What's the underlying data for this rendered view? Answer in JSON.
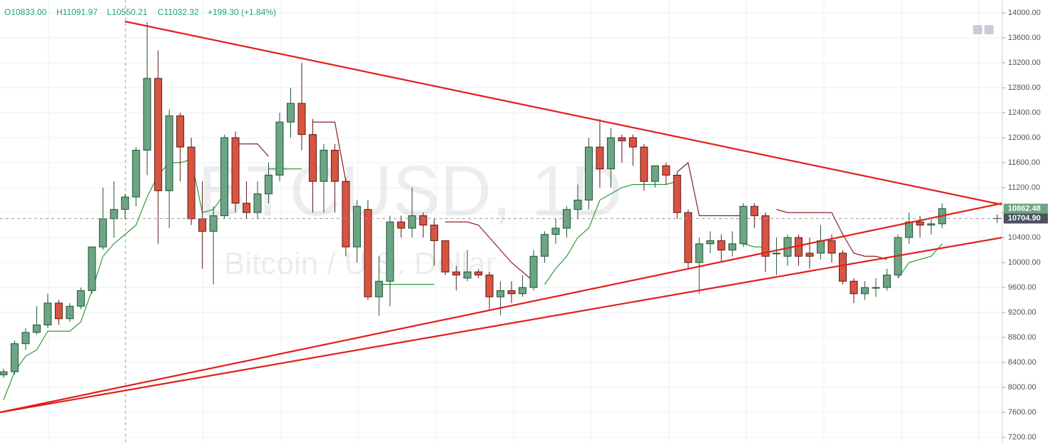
{
  "chart_data": {
    "type": "candlestick",
    "header": [
      "O10833.00",
      "H11091.97",
      "L10550.21",
      "C11032.32",
      "+199.30 (+1.84%)"
    ],
    "watermark": [
      "BTCUSD, 1D",
      "Bitcoin / U.S. Dollar"
    ],
    "ylim": [
      7108.6,
      14205.7
    ],
    "yticks": [
      {
        "value": 7200,
        "label": "7200.00"
      },
      {
        "value": 7600,
        "label": "7600.00"
      },
      {
        "value": 8000,
        "label": "8000.00"
      },
      {
        "value": 8400,
        "label": "8400.00"
      },
      {
        "value": 8800,
        "label": "8800.00"
      },
      {
        "value": 9200,
        "label": "9200.00"
      },
      {
        "value": 9600,
        "label": "9600.00"
      },
      {
        "value": 10000,
        "label": "10000.00"
      },
      {
        "value": 10400,
        "label": "10400.00"
      },
      {
        "value": 10800,
        "label": "10800.00"
      },
      {
        "value": 11200,
        "label": "11200.00"
      },
      {
        "value": 11600,
        "label": "11600.00"
      },
      {
        "value": 12000,
        "label": "12000.00"
      },
      {
        "value": 12400,
        "label": "12400.00"
      },
      {
        "value": 12800,
        "label": "12800.00"
      },
      {
        "value": 13200,
        "label": "13200.00"
      },
      {
        "value": 13600,
        "label": "13600.00"
      },
      {
        "value": 14000,
        "label": "14000.00"
      }
    ],
    "grid": true,
    "up_color": "#6ba583",
    "up_border": "#225437",
    "down_color": "#d75442",
    "down_border": "#5b1a13",
    "candles": [
      [
        8200,
        8300,
        8150,
        8250
      ],
      [
        8250,
        8750,
        8200,
        8700
      ],
      [
        8700,
        8950,
        8600,
        8880
      ],
      [
        8880,
        9300,
        8850,
        9000
      ],
      [
        9000,
        9500,
        8950,
        9350
      ],
      [
        9350,
        9400,
        9000,
        9100
      ],
      [
        9100,
        9350,
        9050,
        9300
      ],
      [
        9300,
        9600,
        9250,
        9550
      ],
      [
        9550,
        10250,
        9500,
        10250
      ],
      [
        10250,
        11200,
        10200,
        10700
      ],
      [
        10700,
        11300,
        10400,
        10850
      ],
      [
        10850,
        11100,
        10700,
        11050
      ],
      [
        11050,
        11850,
        10900,
        11800
      ],
      [
        11800,
        13850,
        11400,
        12950
      ],
      [
        12950,
        13400,
        10300,
        11150
      ],
      [
        11150,
        12450,
        10550,
        12350
      ],
      [
        12350,
        12400,
        11300,
        11850
      ],
      [
        11850,
        12000,
        10600,
        10700
      ],
      [
        10700,
        11300,
        9900,
        10500
      ],
      [
        10500,
        10900,
        9650,
        10750
      ],
      [
        10750,
        12050,
        10700,
        12000
      ],
      [
        12000,
        12100,
        10800,
        10950
      ],
      [
        10950,
        11300,
        10700,
        10800
      ],
      [
        10800,
        11300,
        10700,
        11100
      ],
      [
        11100,
        11600,
        10950,
        11400
      ],
      [
        11400,
        12400,
        11300,
        12250
      ],
      [
        12250,
        12800,
        12000,
        12550
      ],
      [
        12550,
        13200,
        11800,
        12050
      ],
      [
        12050,
        12300,
        10800,
        11300
      ],
      [
        11300,
        11900,
        10800,
        11800
      ],
      [
        11800,
        11900,
        10800,
        11300
      ],
      [
        11300,
        11350,
        10100,
        10250
      ],
      [
        10250,
        11000,
        10000,
        10900
      ],
      [
        10850,
        11000,
        9400,
        9450
      ],
      [
        9450,
        10100,
        9150,
        9700
      ],
      [
        9700,
        10750,
        9300,
        10650
      ],
      [
        10650,
        10750,
        10400,
        10550
      ],
      [
        10550,
        11200,
        10400,
        10750
      ],
      [
        10750,
        10800,
        10400,
        10600
      ],
      [
        10600,
        10700,
        9950,
        10350
      ],
      [
        10350,
        10350,
        9800,
        9850
      ],
      [
        9850,
        9950,
        9550,
        9800
      ],
      [
        9750,
        10200,
        9700,
        9850
      ],
      [
        9850,
        9900,
        9750,
        9800
      ],
      [
        9800,
        9850,
        9250,
        9450
      ],
      [
        9450,
        9700,
        9150,
        9550
      ],
      [
        9550,
        9700,
        9350,
        9500
      ],
      [
        9500,
        9800,
        9450,
        9600
      ],
      [
        9600,
        10200,
        9550,
        10100
      ],
      [
        10100,
        10500,
        10000,
        10450
      ],
      [
        10450,
        10700,
        10300,
        10550
      ],
      [
        10550,
        10900,
        10400,
        10850
      ],
      [
        10850,
        11250,
        10700,
        11000
      ],
      [
        11000,
        12000,
        10850,
        11850
      ],
      [
        11850,
        12300,
        11200,
        11500
      ],
      [
        11500,
        12150,
        11200,
        12000
      ],
      [
        12000,
        12050,
        11600,
        11950
      ],
      [
        12000,
        12050,
        11550,
        11850
      ],
      [
        11850,
        11900,
        11150,
        11300
      ],
      [
        11300,
        11550,
        11200,
        11550
      ],
      [
        11550,
        11600,
        11250,
        11400
      ],
      [
        11400,
        11450,
        10700,
        10800
      ],
      [
        10800,
        10850,
        9900,
        10000
      ],
      [
        10000,
        10400,
        9500,
        10300
      ],
      [
        10300,
        10500,
        10150,
        10350
      ],
      [
        10350,
        10450,
        10000,
        10200
      ],
      [
        10200,
        10500,
        10100,
        10300
      ],
      [
        10300,
        10950,
        10250,
        10900
      ],
      [
        10900,
        10950,
        10550,
        10750
      ],
      [
        10750,
        10800,
        9850,
        10100
      ],
      [
        10150,
        10400,
        9800,
        10150
      ],
      [
        10100,
        10450,
        9950,
        10400
      ],
      [
        10400,
        10450,
        9950,
        10100
      ],
      [
        10150,
        10400,
        9900,
        10100
      ],
      [
        10150,
        10600,
        10050,
        10350
      ],
      [
        10350,
        10450,
        10000,
        10150
      ],
      [
        10150,
        10200,
        9650,
        9700
      ],
      [
        9700,
        9750,
        9350,
        9500
      ],
      [
        9500,
        9700,
        9400,
        9600
      ],
      [
        9600,
        9750,
        9450,
        9600
      ],
      [
        9600,
        9900,
        9550,
        9800
      ],
      [
        9800,
        10450,
        9750,
        10400
      ],
      [
        10400,
        10800,
        10300,
        10650
      ],
      [
        10650,
        10750,
        10400,
        10600
      ],
      [
        10600,
        10700,
        10450,
        10620
      ],
      [
        10620,
        10950,
        10550,
        10862.48
      ]
    ],
    "series": [
      {
        "color": "#2a9d3a",
        "values": [
          7800,
          8250,
          8500,
          8600,
          8900,
          8900,
          8900,
          9050,
          9550,
          10100,
          10300,
          10450,
          10600,
          11050,
          11400,
          11600,
          11600,
          11650,
          10800,
          10850,
          11100,
          null,
          null,
          null,
          11500,
          11500,
          11500,
          11500,
          null,
          null,
          null,
          null,
          null,
          null,
          9650,
          9650,
          9650,
          9650,
          9650,
          9650,
          null,
          null,
          null,
          null,
          null,
          null,
          null,
          null,
          null,
          9650,
          9900,
          10100,
          10400,
          10550,
          11000,
          11100,
          11200,
          11250,
          11250,
          11250,
          11250,
          11300,
          null,
          null,
          null,
          null,
          null,
          10300,
          10250,
          10250,
          null,
          null,
          null,
          null,
          null,
          null,
          null,
          null,
          null,
          null,
          null,
          9750,
          10000,
          10050,
          10100,
          10300
        ]
      },
      {
        "color": "#8b2020",
        "values": [
          null,
          null,
          null,
          null,
          null,
          null,
          null,
          null,
          null,
          null,
          null,
          null,
          null,
          null,
          null,
          null,
          null,
          null,
          null,
          null,
          null,
          11900,
          11900,
          11900,
          11700,
          null,
          null,
          null,
          12250,
          12250,
          12250,
          11300,
          null,
          null,
          null,
          null,
          null,
          null,
          null,
          null,
          10650,
          10650,
          10650,
          10600,
          10400,
          10200,
          10000,
          9850,
          9700,
          null,
          null,
          null,
          null,
          null,
          null,
          null,
          null,
          null,
          null,
          null,
          null,
          11450,
          11600,
          10750,
          10750,
          10750,
          10750,
          10750,
          null,
          null,
          10850,
          10800,
          10800,
          10800,
          10800,
          10800,
          10450,
          10150,
          10100,
          10100,
          10050,
          null,
          null,
          null,
          null,
          null
        ]
      }
    ],
    "trendlines": [
      {
        "color": "#e0201b",
        "from": [
          10.98,
          13863
        ],
        "to": [
          90.44,
          10926
        ]
      },
      {
        "color": "#e0201b",
        "from": [
          -0.32,
          7600
        ],
        "to": [
          90.44,
          10949
        ]
      },
      {
        "color": "#e0201b",
        "from": [
          -0.32,
          7600
        ],
        "to": [
          90.44,
          10400
        ]
      }
    ],
    "last_close": 10862.48,
    "crosshair_price": {
      "value": 10704.9,
      "label": "10704.90"
    }
  }
}
